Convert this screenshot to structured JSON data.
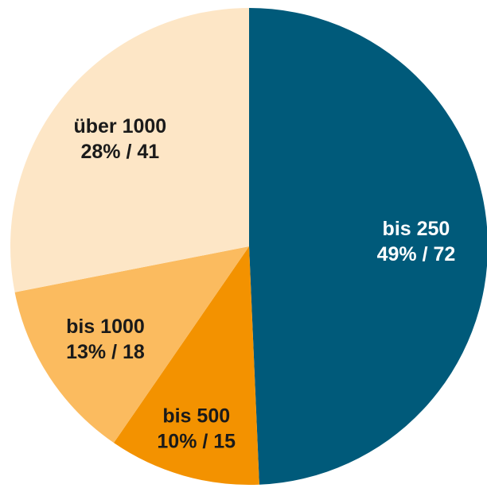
{
  "chart_data": {
    "type": "pie",
    "categories": [
      "bis 250",
      "bis 500",
      "bis 1000",
      "über 1000"
    ],
    "values": [
      72,
      15,
      18,
      41
    ],
    "value_labels": [
      "49% / 72",
      "10% / 15",
      "13% / 18",
      "28% / 41"
    ],
    "colors": [
      "#005a7a",
      "#f39200",
      "#fbbb5f",
      "#fde6c6"
    ]
  }
}
